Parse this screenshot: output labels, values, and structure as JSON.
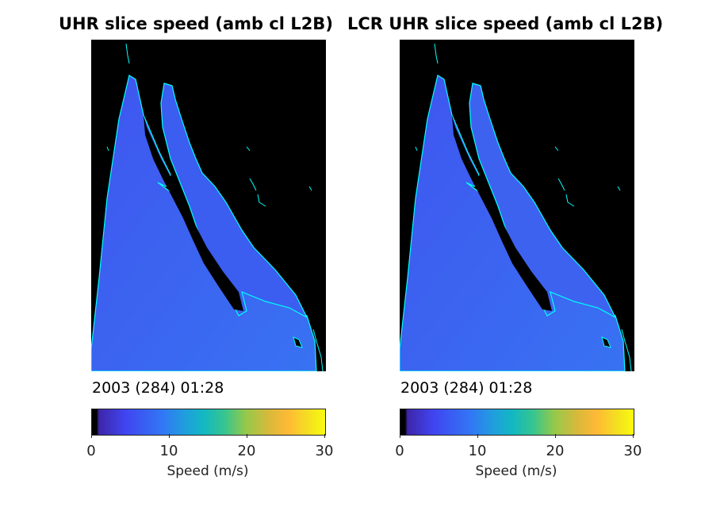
{
  "panels": [
    {
      "title": "UHR slice speed (amb cl L2B)",
      "timestamp": "2003 (284) 01:28",
      "colorbar": {
        "ticks": [
          "0",
          "10",
          "20",
          "30"
        ],
        "label": "Speed (m/s)"
      }
    },
    {
      "title": "LCR UHR slice speed (amb cl L2B)",
      "timestamp": "2003 (284) 01:28",
      "colorbar": {
        "ticks": [
          "0",
          "10",
          "20",
          "30"
        ],
        "label": "Speed (m/s)"
      }
    }
  ],
  "colors": {
    "land": "#000000",
    "ocean": "#3d64f0",
    "coastline": "#00ffff",
    "colormap": "parula"
  }
}
